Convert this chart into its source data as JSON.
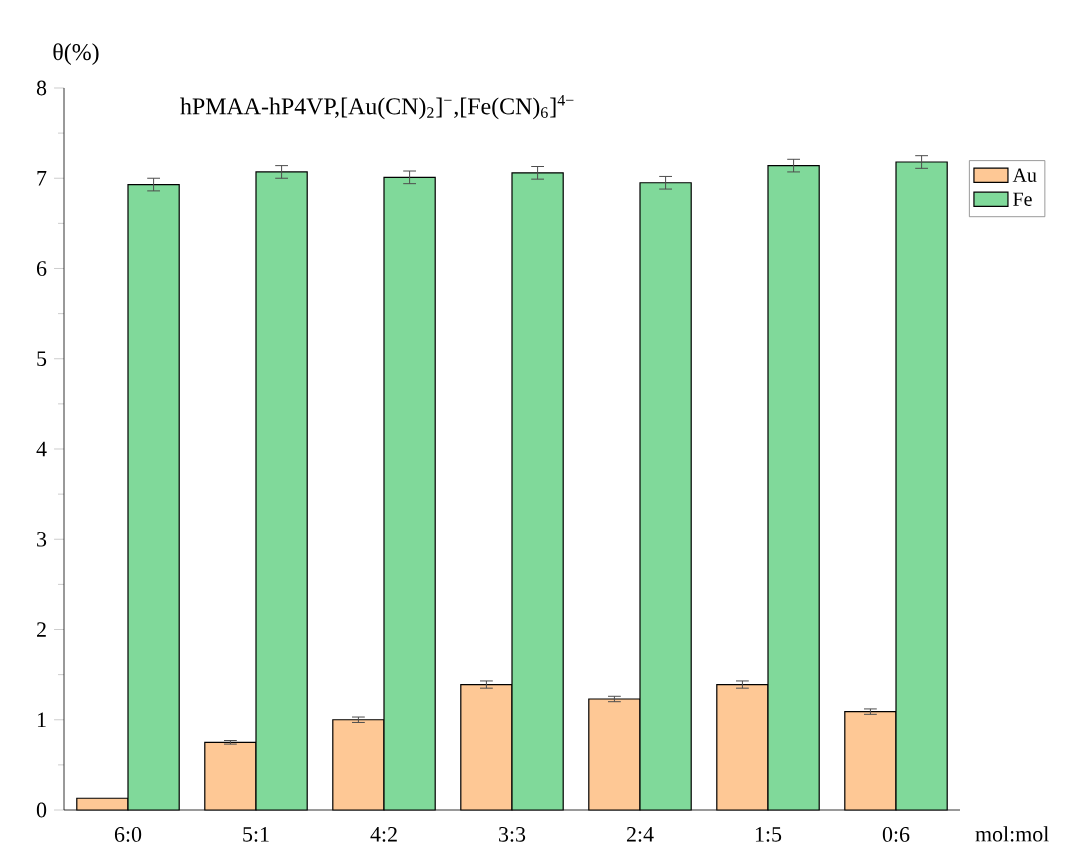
{
  "chart_data": {
    "type": "bar",
    "title": "hPMAA-hP4VP,[Au(CN)$_{2}$]$^{−}$,[Fe(CN)$_{6}$]$^{4−}$",
    "xlabel": "mol:mol",
    "ylabel": "θ(%)",
    "categories": [
      "6:0",
      "5:1",
      "4:2",
      "3:3",
      "2:4",
      "1:5",
      "0:6"
    ],
    "series": [
      {
        "name": "Au",
        "color": "#fec895",
        "values": [
          0.13,
          0.75,
          1.0,
          1.39,
          1.23,
          1.39,
          1.09
        ],
        "errors": [
          null,
          0.02,
          0.03,
          0.04,
          0.03,
          0.04,
          0.03
        ]
      },
      {
        "name": "Fe",
        "color": "#80d99a",
        "values": [
          6.93,
          7.07,
          7.01,
          7.06,
          6.95,
          7.14,
          7.18
        ],
        "errors": [
          0.07,
          0.07,
          0.07,
          0.07,
          0.07,
          0.07,
          0.07
        ]
      }
    ],
    "ylim": [
      0,
      8
    ],
    "yticks": [
      0,
      1,
      2,
      3,
      4,
      5,
      6,
      7,
      8
    ],
    "legend": "top right",
    "grid": false
  }
}
